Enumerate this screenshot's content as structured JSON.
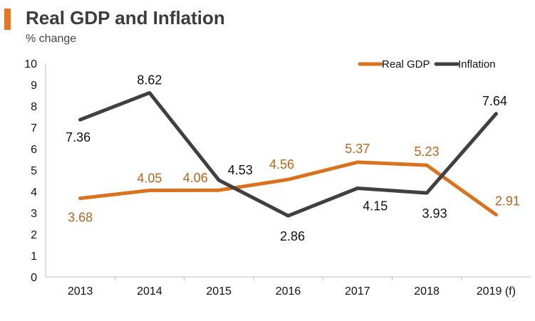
{
  "header": {
    "title": "Real GDP and Inflation",
    "subtitle": "% change"
  },
  "colors": {
    "accent": "#e87722",
    "real_gdp": "#d8721f",
    "inflation": "#404040",
    "gdp_label": "#b8651c",
    "inflation_label": "#111111",
    "axis": "#bfbfbf"
  },
  "chart_data": {
    "type": "line",
    "title": "Real GDP and Inflation",
    "subtitle": "% change",
    "categories": [
      "2013",
      "2014",
      "2015",
      "2016",
      "2017",
      "2018",
      "2019 (f)"
    ],
    "series": [
      {
        "name": "Real GDP",
        "values": [
          3.68,
          4.05,
          4.06,
          4.56,
          5.37,
          5.23,
          2.91
        ]
      },
      {
        "name": "Inflation",
        "values": [
          7.36,
          8.62,
          4.53,
          2.86,
          4.15,
          3.93,
          7.64
        ]
      }
    ],
    "ylim": [
      0,
      10
    ],
    "yticks": [
      "0",
      "1",
      "2",
      "3",
      "4",
      "5",
      "6",
      "7",
      "8",
      "9",
      "10"
    ],
    "grid": false,
    "legend": "top-right",
    "data_labels": {
      "Real GDP": [
        "3.68",
        "4.05",
        "4.06",
        "4.56",
        "5.37",
        "5.23",
        "2.91"
      ],
      "Inflation": [
        "7.36",
        "8.62",
        "4.53",
        "2.86",
        "4.15",
        "3.93",
        "7.64"
      ]
    }
  }
}
